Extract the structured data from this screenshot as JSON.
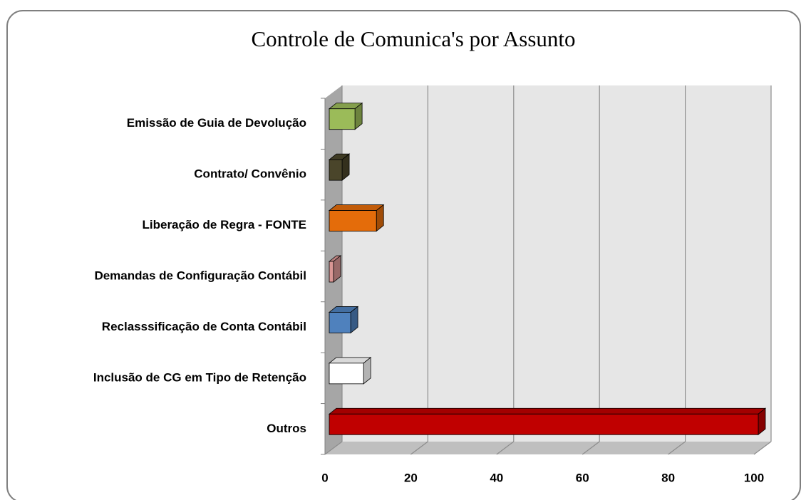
{
  "chart_data": {
    "type": "bar3d_horizontal",
    "title": "Controle de Comunica's por Assunto",
    "categories": [
      "Emissão de Guia de Devolução",
      "Contrato/ Convênio",
      "Liberação de Regra - FONTE",
      "Demandas de Configuração Contábil",
      "Reclasssificação de Conta Contábil",
      "Inclusão de CG em Tipo de Retenção",
      "Outros"
    ],
    "values": [
      6,
      3,
      11,
      1,
      5,
      8,
      100
    ],
    "colors": [
      "#9bbb59",
      "#4a452a",
      "#e46c0a",
      "#d99694",
      "#4f81bd",
      "#ffffff",
      "#c00000"
    ],
    "xlim": [
      0,
      100
    ],
    "xticks": [
      0,
      20,
      40,
      60,
      80,
      100
    ],
    "grid": true
  }
}
